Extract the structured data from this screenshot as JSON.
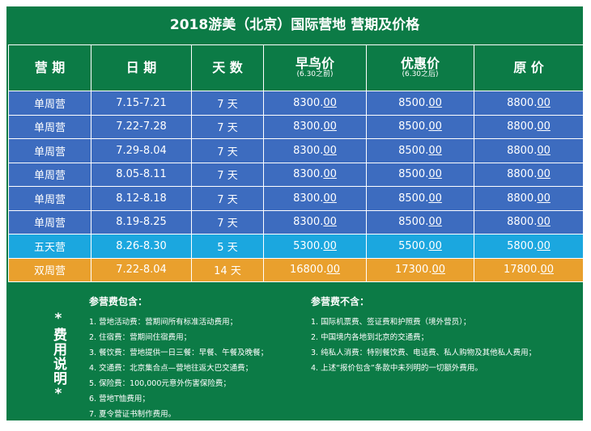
{
  "title": "2018游美（北京）国际营地 营期及价格",
  "table": {
    "header": [
      {
        "label": "营 期"
      },
      {
        "label": "日 期"
      },
      {
        "label": "天 数"
      },
      {
        "label": "早鸟价",
        "sub": "(6.30之前)"
      },
      {
        "label": "优惠价",
        "sub": "(6.30之后)"
      },
      {
        "label": "原 价"
      }
    ],
    "rows": [
      {
        "color": "#3d6cbf",
        "cells": [
          "单周营",
          "7.15-7.21",
          "7 天",
          "8300.00",
          "8500.00",
          "8800.00"
        ]
      },
      {
        "color": "#3d6cbf",
        "cells": [
          "单周营",
          "7.22-7.28",
          "7 天",
          "8300.00",
          "8500.00",
          "8800.00"
        ]
      },
      {
        "color": "#3d6cbf",
        "cells": [
          "单周营",
          "7.29-8.04",
          "7 天",
          "8300.00",
          "8500.00",
          "8800.00"
        ]
      },
      {
        "color": "#3d6cbf",
        "cells": [
          "单周营",
          "8.05-8.11",
          "7 天",
          "8300.00",
          "8500.00",
          "8800.00"
        ]
      },
      {
        "color": "#3d6cbf",
        "cells": [
          "单周营",
          "8.12-8.18",
          "7 天",
          "8300.00",
          "8500.00",
          "8800.00"
        ]
      },
      {
        "color": "#3d6cbf",
        "cells": [
          "单周营",
          "8.19-8.25",
          "7 天",
          "8300.00",
          "8500.00",
          "8800.00"
        ]
      },
      {
        "color": "#1ba7df",
        "cells": [
          "五天营",
          "8.26-8.30",
          "5 天",
          "5300.00",
          "5500.00",
          "5800.00"
        ]
      },
      {
        "color": "#e9a02d",
        "cells": [
          "双周营",
          "7.22-8.04",
          "14 天",
          "16800.00",
          "17300.00",
          "17800.00"
        ]
      }
    ]
  },
  "notes": {
    "side_label": "*费用说明*",
    "included": {
      "title": "参营费包含：",
      "items": [
        "1. 营地活动费：营期间所有标准活动费用；",
        "2. 住宿费：营期间住宿费用；",
        "3. 餐饮费：营地提供一日三餐：早餐、午餐及晚餐；",
        "4. 交通费：北京集合点—营地往返大巴交通费；",
        "5. 保险费：100,000元意外伤害保险费；",
        "6. 营地T恤费用；",
        "7. 夏令营证书制作费用。"
      ]
    },
    "excluded": {
      "title": "参营费不含：",
      "items": [
        "1. 国际机票费、签证费和护照费（境外营员）；",
        "2. 中国境内各地到北京的交通费；",
        "3. 纯私人消费：特别餐饮费、电话费、私人购物及其他私人费用；",
        "4. 上述“报价包含”条款中未列明的一切额外费用。"
      ]
    }
  }
}
